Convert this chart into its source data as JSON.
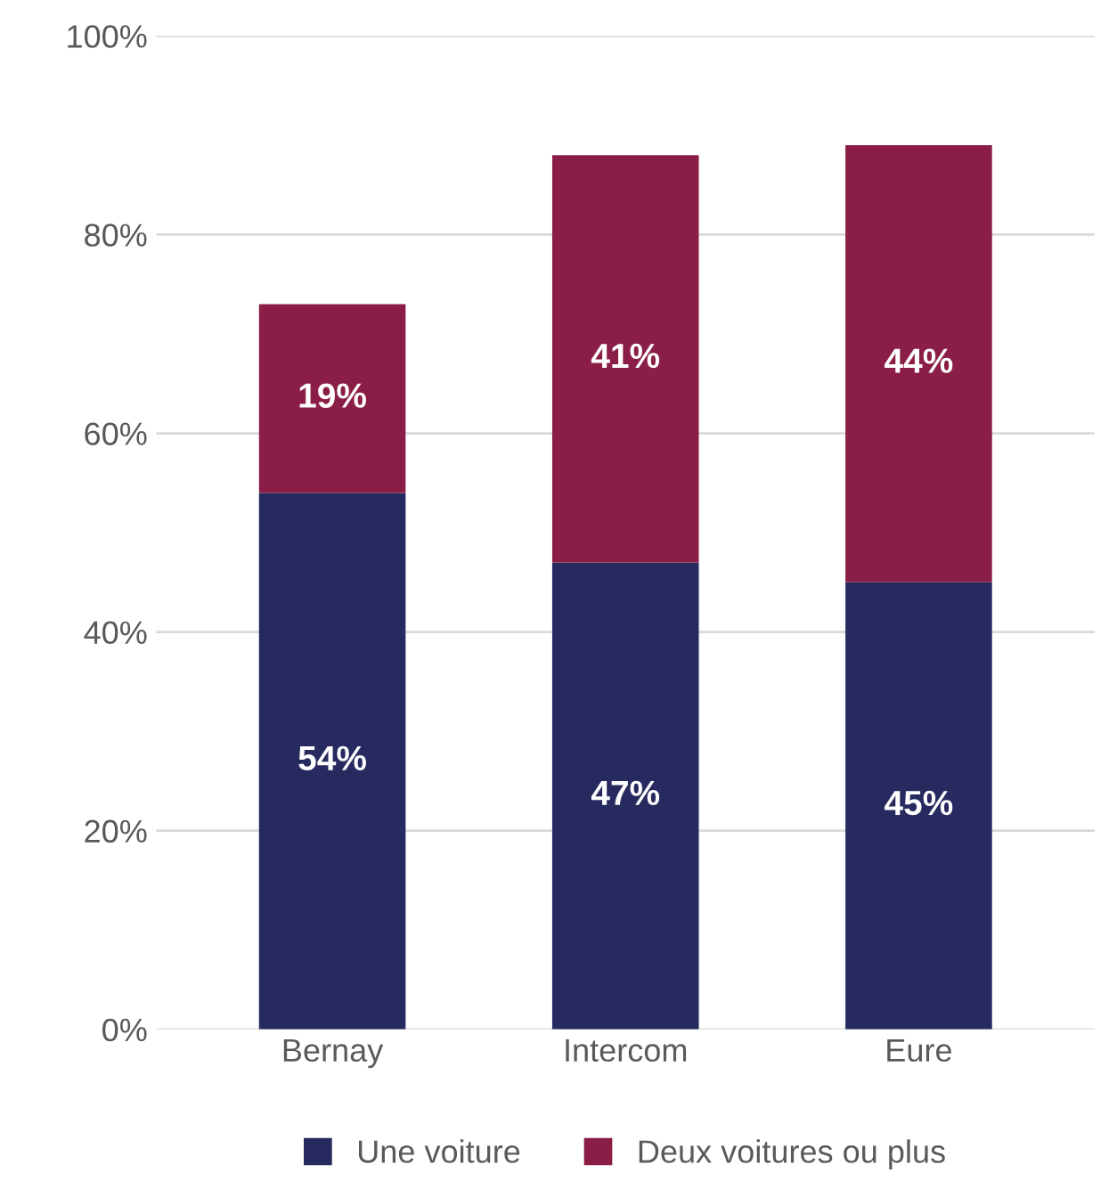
{
  "chart_data": {
    "type": "bar",
    "stacked": true,
    "categories": [
      "Bernay",
      "Intercom",
      "Eure"
    ],
    "series": [
      {
        "name": "Une voiture",
        "color": "#262a5e",
        "values": [
          54,
          47,
          45
        ],
        "value_labels": [
          "54%",
          "47%",
          "45%"
        ]
      },
      {
        "name": "Deux voitures ou plus",
        "color": "#8b1e47",
        "values": [
          19,
          41,
          44
        ],
        "value_labels": [
          "19%",
          "41%",
          "44%"
        ]
      }
    ],
    "ylim": [
      0,
      100
    ],
    "yticks": [
      {
        "value": 0,
        "label": "0%"
      },
      {
        "value": 20,
        "label": "20%"
      },
      {
        "value": 40,
        "label": "40%"
      },
      {
        "value": 60,
        "label": "60%"
      },
      {
        "value": 80,
        "label": "80%"
      },
      {
        "value": 100,
        "label": "100%"
      }
    ],
    "grid": "y",
    "legend": "bottom"
  }
}
